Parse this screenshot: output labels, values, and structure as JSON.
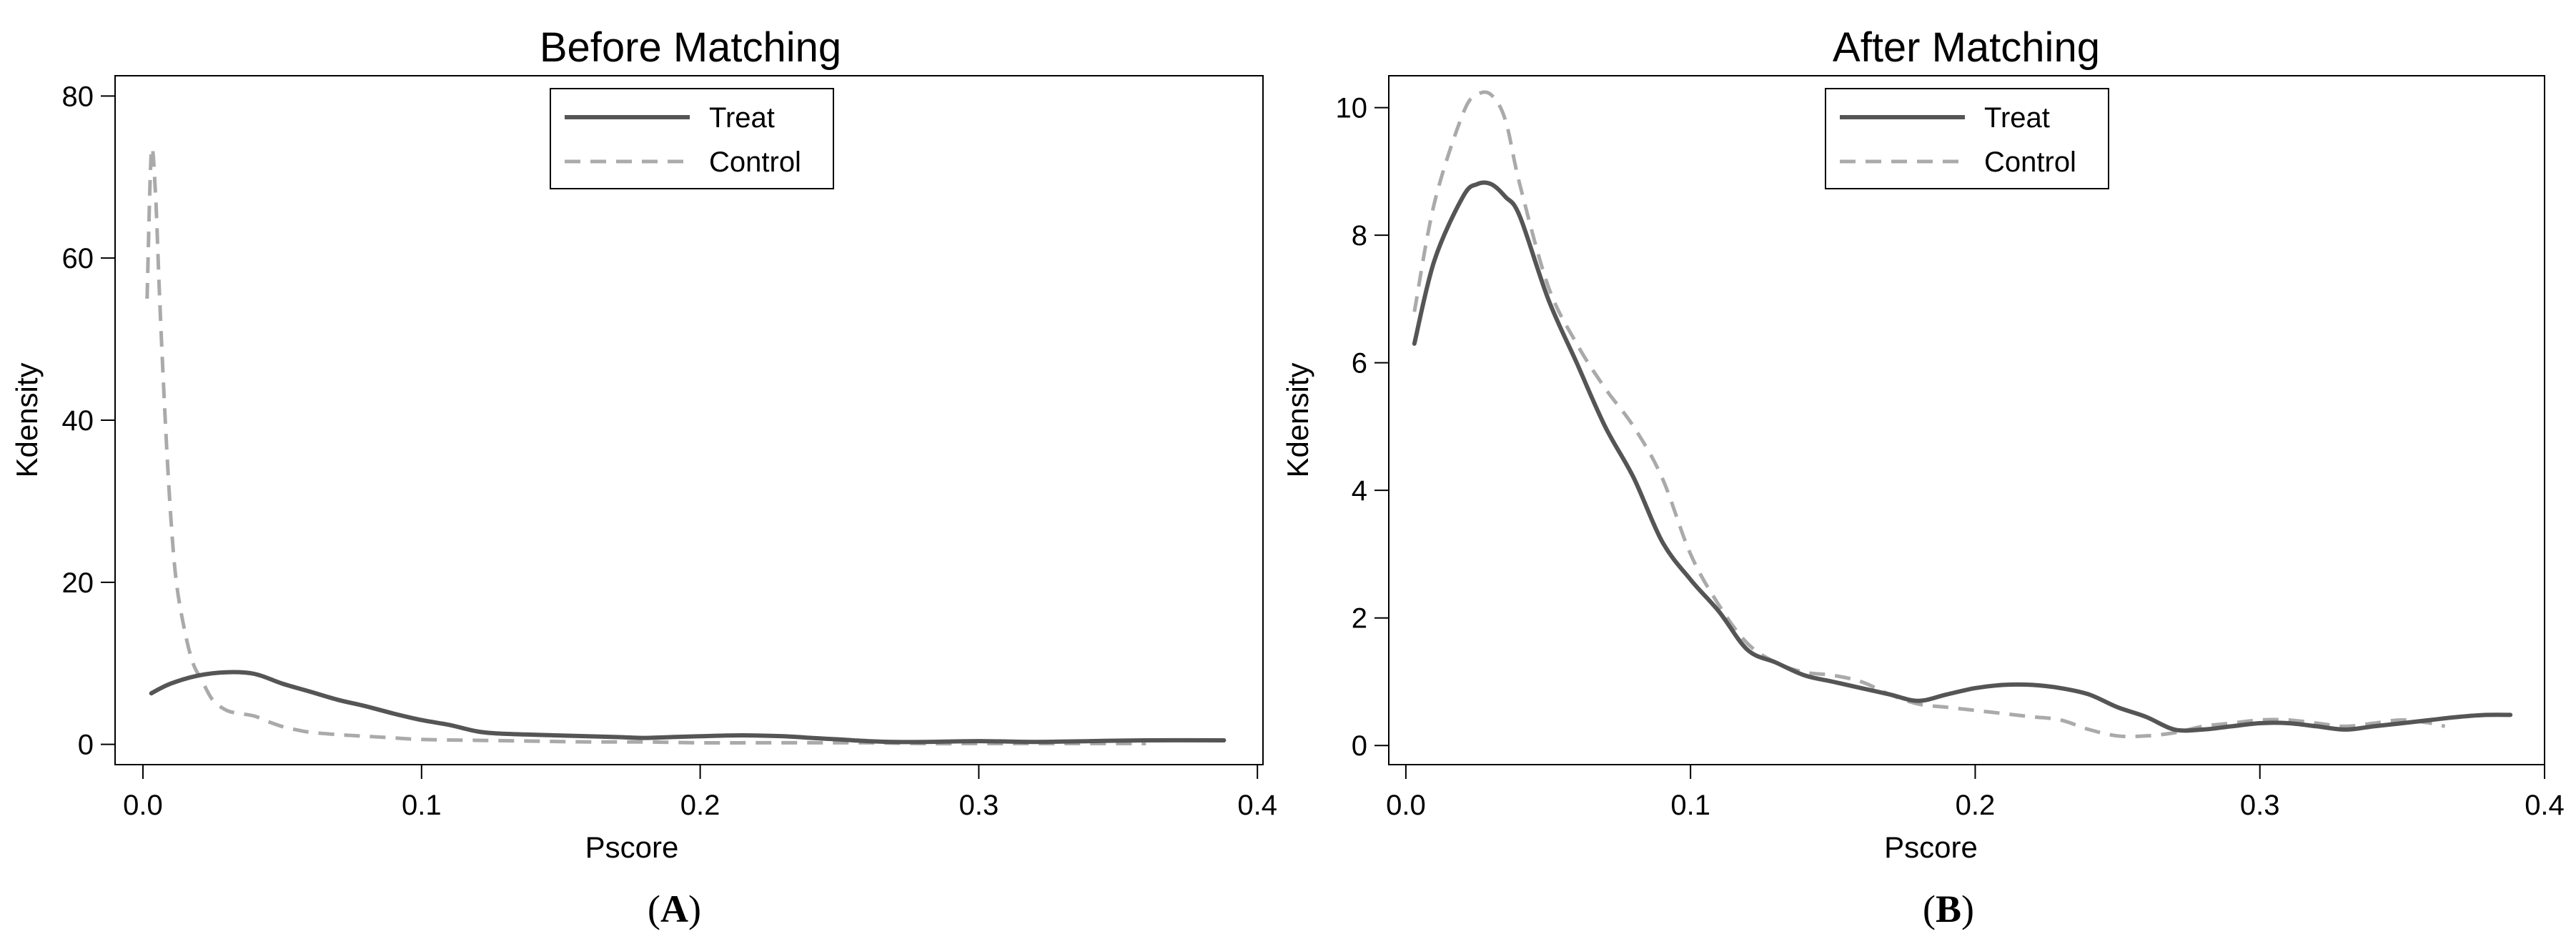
{
  "chart_data": [
    {
      "type": "line",
      "panel_label": "(A)",
      "panel_letter": "A",
      "title": "Before Matching",
      "xlabel": "Pscore",
      "ylabel": "Kdensity",
      "xlim": [
        -0.01,
        0.402
      ],
      "ylim": [
        -2.5,
        82.5
      ],
      "xticks": [
        0.0,
        0.1,
        0.2,
        0.3,
        0.4
      ],
      "xtick_labels": [
        "0.0",
        "0.1",
        "0.2",
        "0.3",
        "0.4"
      ],
      "yticks": [
        0,
        20,
        40,
        60,
        80
      ],
      "ytick_labels": [
        "0",
        "20",
        "40",
        "60",
        "80"
      ],
      "grid": false,
      "legend_position": "top-center",
      "series": [
        {
          "name": "Treat",
          "color": "#555555",
          "style": "solid",
          "x": [
            0.003,
            0.01,
            0.02,
            0.03,
            0.04,
            0.05,
            0.06,
            0.07,
            0.08,
            0.09,
            0.1,
            0.11,
            0.12,
            0.13,
            0.15,
            0.17,
            0.18,
            0.19,
            0.2,
            0.21,
            0.22,
            0.23,
            0.24,
            0.25,
            0.26,
            0.27,
            0.28,
            0.3,
            0.32,
            0.34,
            0.36,
            0.388
          ],
          "y": [
            6.3,
            7.5,
            8.5,
            8.9,
            8.7,
            7.5,
            6.5,
            5.5,
            4.7,
            3.8,
            3.0,
            2.4,
            1.6,
            1.3,
            1.1,
            0.9,
            0.8,
            0.9,
            1.0,
            1.1,
            1.1,
            1.0,
            0.8,
            0.6,
            0.4,
            0.3,
            0.3,
            0.4,
            0.3,
            0.4,
            0.5,
            0.5
          ]
        },
        {
          "name": "Control",
          "color": "#aaaaaa",
          "style": "dashed",
          "x": [
            0.0015,
            0.003,
            0.0045,
            0.006,
            0.008,
            0.01,
            0.012,
            0.015,
            0.018,
            0.021,
            0.025,
            0.03,
            0.035,
            0.04,
            0.045,
            0.05,
            0.055,
            0.06,
            0.07,
            0.08,
            0.09,
            0.1,
            0.12,
            0.14,
            0.16,
            0.18,
            0.2,
            0.22,
            0.24,
            0.26,
            0.28,
            0.3,
            0.32,
            0.34,
            0.36
          ],
          "y": [
            55,
            73,
            68,
            55,
            40,
            28,
            20,
            14,
            10,
            8,
            5.5,
            4.2,
            3.8,
            3.5,
            2.8,
            2.2,
            1.8,
            1.5,
            1.2,
            1.0,
            0.8,
            0.6,
            0.5,
            0.4,
            0.3,
            0.3,
            0.2,
            0.2,
            0.2,
            0.2,
            0.1,
            0.1,
            0.1,
            0.1,
            0.1
          ]
        }
      ]
    },
    {
      "type": "line",
      "panel_label": "(B)",
      "panel_letter": "B",
      "title": "After Matching",
      "xlabel": "Pscore",
      "ylabel": "Kdensity",
      "xlim": [
        -0.006,
        0.4
      ],
      "ylim": [
        -0.3,
        10.5
      ],
      "xticks": [
        0.0,
        0.1,
        0.2,
        0.3,
        0.4
      ],
      "xtick_labels": [
        "0.0",
        "0.1",
        "0.2",
        "0.3",
        "0.4"
      ],
      "yticks": [
        0,
        2,
        4,
        6,
        8,
        10
      ],
      "ytick_labels": [
        "0",
        "2",
        "4",
        "6",
        "8",
        "10"
      ],
      "grid": false,
      "legend_position": "top-center",
      "series": [
        {
          "name": "Treat",
          "color": "#555555",
          "style": "solid",
          "x": [
            0.003,
            0.01,
            0.02,
            0.025,
            0.03,
            0.035,
            0.04,
            0.05,
            0.06,
            0.07,
            0.08,
            0.09,
            0.1,
            0.11,
            0.12,
            0.13,
            0.14,
            0.15,
            0.16,
            0.17,
            0.18,
            0.19,
            0.2,
            0.21,
            0.22,
            0.23,
            0.24,
            0.25,
            0.26,
            0.27,
            0.28,
            0.29,
            0.3,
            0.31,
            0.32,
            0.33,
            0.34,
            0.35,
            0.36,
            0.37,
            0.38,
            0.388
          ],
          "y": [
            6.3,
            7.6,
            8.6,
            8.8,
            8.8,
            8.6,
            8.3,
            7.0,
            6.0,
            5.0,
            4.2,
            3.2,
            2.6,
            2.1,
            1.5,
            1.3,
            1.1,
            1.0,
            0.9,
            0.8,
            0.7,
            0.8,
            0.9,
            0.95,
            0.95,
            0.9,
            0.8,
            0.6,
            0.45,
            0.25,
            0.25,
            0.3,
            0.35,
            0.35,
            0.3,
            0.25,
            0.3,
            0.35,
            0.4,
            0.45,
            0.48,
            0.48
          ]
        },
        {
          "name": "Control",
          "color": "#aaaaaa",
          "style": "dashed",
          "x": [
            0.003,
            0.01,
            0.02,
            0.025,
            0.03,
            0.035,
            0.04,
            0.05,
            0.06,
            0.07,
            0.08,
            0.09,
            0.1,
            0.11,
            0.12,
            0.13,
            0.14,
            0.15,
            0.16,
            0.17,
            0.18,
            0.19,
            0.2,
            0.21,
            0.22,
            0.23,
            0.24,
            0.25,
            0.26,
            0.27,
            0.28,
            0.29,
            0.3,
            0.31,
            0.32,
            0.33,
            0.34,
            0.35,
            0.36,
            0.365
          ],
          "y": [
            6.8,
            8.5,
            9.9,
            10.2,
            10.2,
            9.8,
            8.8,
            7.2,
            6.3,
            5.6,
            5.0,
            4.2,
            3.0,
            2.2,
            1.6,
            1.3,
            1.15,
            1.1,
            1.0,
            0.8,
            0.65,
            0.6,
            0.55,
            0.5,
            0.45,
            0.4,
            0.25,
            0.15,
            0.15,
            0.2,
            0.3,
            0.35,
            0.4,
            0.4,
            0.35,
            0.3,
            0.35,
            0.4,
            0.35,
            0.3
          ]
        }
      ]
    }
  ]
}
